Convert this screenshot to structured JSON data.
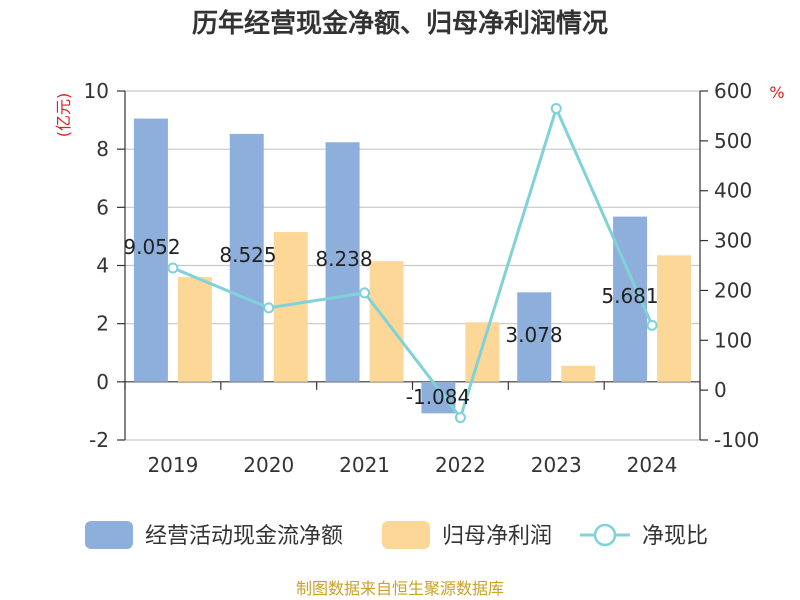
{
  "chart_data": {
    "type": "bar",
    "title": "历年经营现金净额、归母净利润情况",
    "categories": [
      "2019",
      "2020",
      "2021",
      "2022",
      "2023",
      "2024"
    ],
    "left_axis": {
      "unit": "(亿元)",
      "ylim": [
        -2,
        10
      ],
      "ticks": [
        "-2",
        "0",
        "2",
        "4",
        "6",
        "8",
        "10"
      ]
    },
    "right_axis": {
      "unit": "%",
      "ylim": [
        -100,
        600
      ],
      "ticks": [
        "-100",
        "0",
        "100",
        "200",
        "300",
        "400",
        "500",
        "600"
      ]
    },
    "series": [
      {
        "name": "经营活动现金流净额",
        "type": "bar",
        "axis": "left",
        "color": "#8eaedb",
        "values": [
          9.052,
          8.525,
          8.238,
          -1.084,
          3.078,
          5.681
        ],
        "labels": [
          "9.052",
          "8.525",
          "8.238",
          "-1.084",
          "3.078",
          "5.681"
        ]
      },
      {
        "name": "归母净利润",
        "type": "bar",
        "axis": "left",
        "color": "#fdd797",
        "values": [
          3.6,
          5.15,
          4.15,
          2.05,
          0.55,
          4.35
        ]
      },
      {
        "name": "净现比",
        "type": "line",
        "axis": "right",
        "color": "#7fd3d8",
        "values": [
          245,
          165,
          195,
          -55,
          565,
          130
        ]
      }
    ],
    "grid": true,
    "legend": "bottom",
    "source": "制图数据来自恒生聚源数据库"
  }
}
